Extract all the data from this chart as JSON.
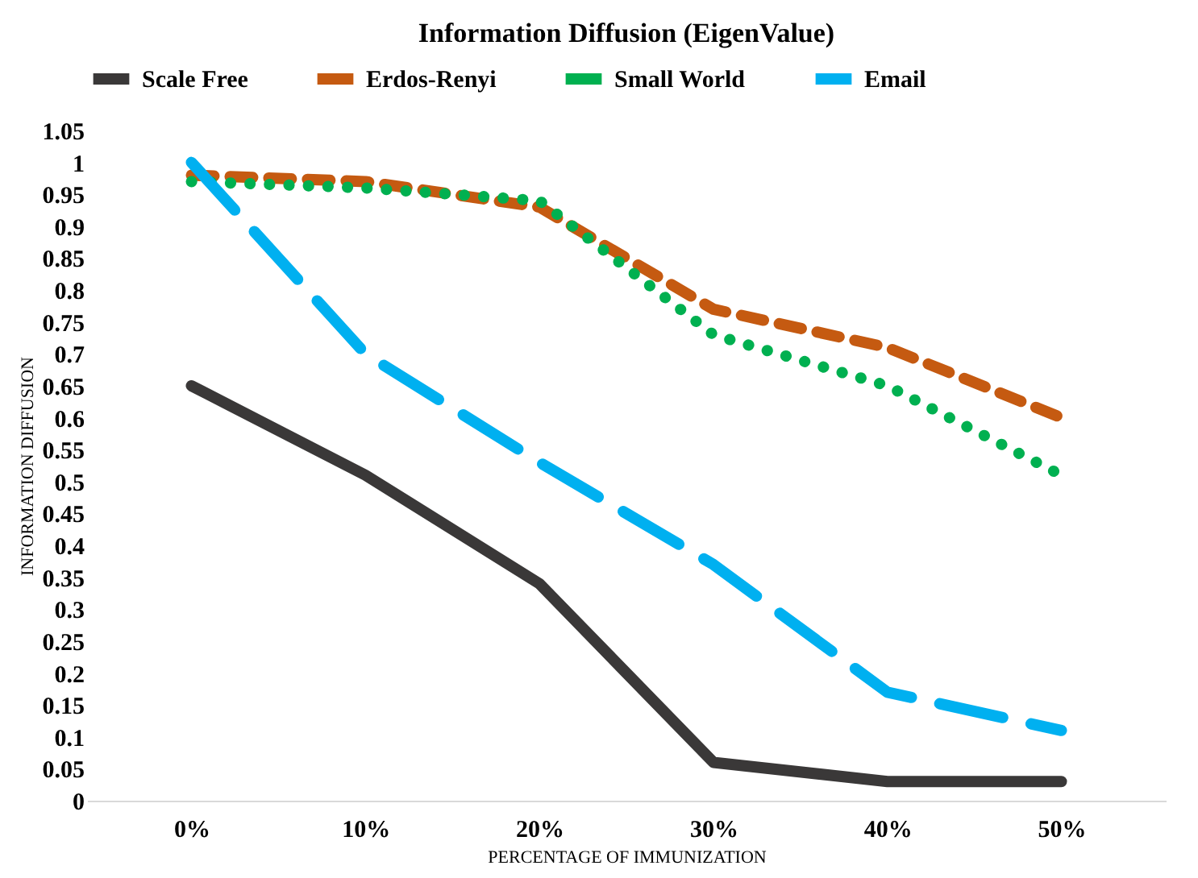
{
  "chart_data": {
    "type": "line",
    "title": "Information Diffusion (EigenValue)",
    "xlabel": "PERCENTAGE OF IMMUNIZATION",
    "ylabel": "INFORMATION DIFFUSION",
    "categories": [
      "0%",
      "10%",
      "20%",
      "30%",
      "40%",
      "50%"
    ],
    "ylim": [
      0,
      1.05
    ],
    "yticks": [
      0,
      0.05,
      0.1,
      0.15,
      0.2,
      0.25,
      0.3,
      0.35,
      0.4,
      0.45,
      0.5,
      0.55,
      0.6,
      0.65,
      0.7,
      0.75,
      0.8,
      0.85,
      0.9,
      0.95,
      1,
      1.05
    ],
    "grid": false,
    "legend": "top",
    "marker": "none",
    "series": [
      {
        "name": "Scale Free",
        "color": "#3a3838",
        "line_style": "solid",
        "values": [
          0.65,
          0.51,
          0.34,
          0.06,
          0.03,
          0.03
        ]
      },
      {
        "name": "Erdos-Renyi",
        "color": "#c55a11",
        "line_style": "dashed",
        "values": [
          0.98,
          0.97,
          0.93,
          0.77,
          0.71,
          0.6
        ]
      },
      {
        "name": "Small World",
        "color": "#00b050",
        "line_style": "dotted",
        "values": [
          0.97,
          0.96,
          0.94,
          0.73,
          0.65,
          0.51
        ]
      },
      {
        "name": "Email",
        "color": "#00b0f0",
        "line_style": "longdash",
        "values": [
          1.0,
          0.7,
          0.53,
          0.37,
          0.17,
          0.11
        ]
      }
    ]
  }
}
